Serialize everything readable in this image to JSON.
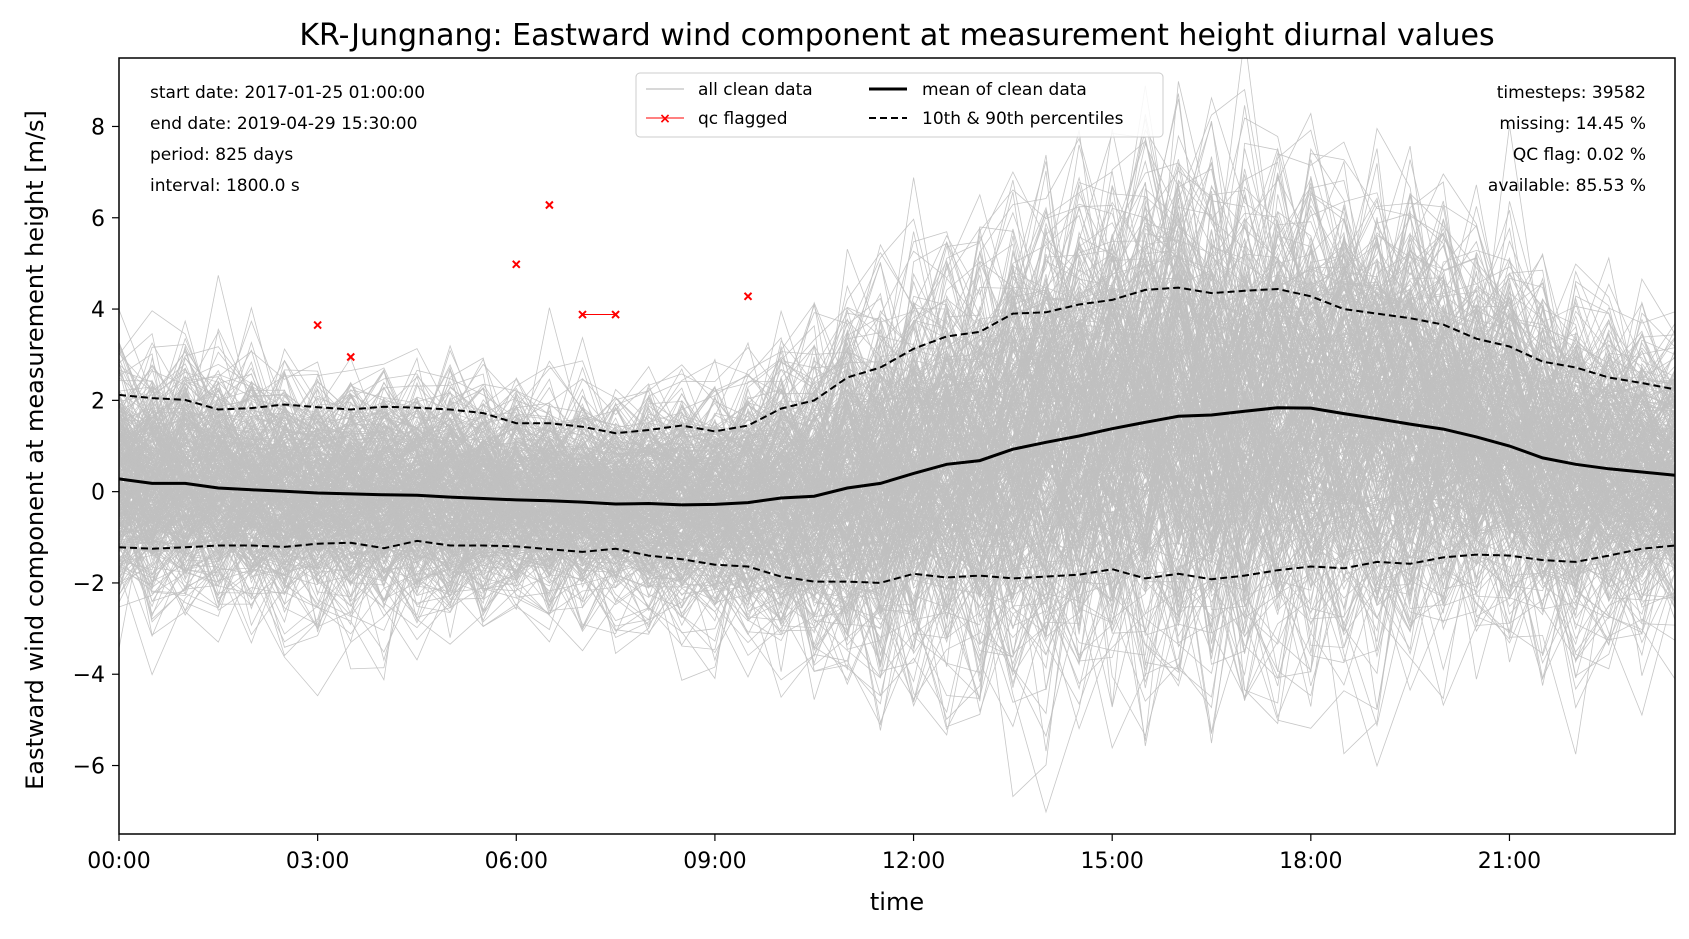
{
  "chart_data": {
    "type": "line",
    "title": "KR-Jungnang: Eastward wind component at measurement height diurnal values",
    "xlabel": "time",
    "ylabel": "Eastward wind component at measurement height [m/s]",
    "xlim": [
      0,
      23.5
    ],
    "ylim": [
      -7.5,
      9.5
    ],
    "x_ticks": [
      0,
      3,
      6,
      9,
      12,
      15,
      18,
      21
    ],
    "x_tick_labels": [
      "00:00",
      "03:00",
      "06:00",
      "09:00",
      "12:00",
      "15:00",
      "18:00",
      "21:00"
    ],
    "y_ticks": [
      -6,
      -4,
      -2,
      0,
      2,
      4,
      6,
      8
    ],
    "y_tick_labels": [
      "−6",
      "−4",
      "−2",
      "0",
      "2",
      "4",
      "6",
      "8"
    ],
    "grid": false,
    "info_left": [
      "start date: 2017-01-25 01:00:00",
      "end date: 2019-04-29 15:30:00",
      "period: 825 days",
      "interval: 1800.0 s"
    ],
    "info_right": [
      "timesteps: 39582",
      "missing: 14.45 %",
      "QC flag: 0.02 %",
      "available: 85.53 %"
    ],
    "legend": {
      "position": "top-center",
      "entries": [
        "all clean data",
        "qc flagged",
        "mean of clean data",
        "10th & 90th percentiles"
      ]
    },
    "colors": {
      "clean": "#c0c0c0",
      "qc": "#ff0000",
      "mean": "#000000",
      "percentile": "#000000"
    },
    "x": [
      0,
      0.5,
      1,
      1.5,
      2,
      2.5,
      3,
      3.5,
      4,
      4.5,
      5,
      5.5,
      6,
      6.5,
      7,
      7.5,
      8,
      8.5,
      9,
      9.5,
      10,
      10.5,
      11,
      11.5,
      12,
      12.5,
      13,
      13.5,
      14,
      14.5,
      15,
      15.5,
      16,
      16.5,
      17,
      17.5,
      18,
      18.5,
      19,
      19.5,
      20,
      20.5,
      21,
      21.5,
      22,
      22.5,
      23,
      23.5
    ],
    "series": [
      {
        "name": "mean of clean data",
        "values": [
          0.28,
          0.18,
          0.18,
          0.08,
          0.04,
          0.01,
          -0.03,
          -0.05,
          -0.07,
          -0.08,
          -0.12,
          -0.15,
          -0.18,
          -0.2,
          -0.23,
          -0.27,
          -0.26,
          -0.29,
          -0.28,
          -0.24,
          -0.14,
          -0.1,
          0.08,
          0.18,
          0.4,
          0.6,
          0.68,
          0.93,
          1.08,
          1.22,
          1.38,
          1.52,
          1.65,
          1.68,
          1.76,
          1.84,
          1.83,
          1.71,
          1.6,
          1.48,
          1.37,
          1.2,
          1.0,
          0.74,
          0.6,
          0.5,
          0.43,
          0.36
        ]
      },
      {
        "name": "10th & 90th percentiles",
        "values": [
          2.12,
          2.05,
          2.01,
          1.8,
          1.83,
          1.91,
          1.85,
          1.8,
          1.86,
          1.84,
          1.8,
          1.72,
          1.5,
          1.5,
          1.42,
          1.28,
          1.35,
          1.45,
          1.32,
          1.45,
          1.82,
          2.0,
          2.5,
          2.72,
          3.13,
          3.4,
          3.5,
          3.9,
          3.93,
          4.1,
          4.2,
          4.42,
          4.47,
          4.35,
          4.4,
          4.44,
          4.28,
          4.0,
          3.9,
          3.8,
          3.66,
          3.35,
          3.18,
          2.85,
          2.72,
          2.5,
          2.38,
          2.24
        ]
      },
      {
        "name": "10th & 90th percentiles",
        "values": [
          -1.22,
          -1.25,
          -1.22,
          -1.18,
          -1.18,
          -1.21,
          -1.14,
          -1.12,
          -1.24,
          -1.08,
          -1.18,
          -1.18,
          -1.2,
          -1.26,
          -1.32,
          -1.25,
          -1.4,
          -1.48,
          -1.6,
          -1.64,
          -1.86,
          -1.97,
          -1.97,
          -2.0,
          -1.8,
          -1.88,
          -1.84,
          -1.9,
          -1.86,
          -1.82,
          -1.7,
          -1.9,
          -1.8,
          -1.92,
          -1.84,
          -1.72,
          -1.64,
          -1.68,
          -1.54,
          -1.58,
          -1.44,
          -1.38,
          -1.4,
          -1.5,
          -1.54,
          -1.4,
          -1.25,
          -1.18
        ]
      },
      {
        "name": "qc flagged",
        "points": [
          [
            3.0,
            3.65
          ],
          [
            3.5,
            2.95
          ],
          [
            6.0,
            4.98
          ],
          [
            6.5,
            6.28
          ],
          [
            7.0,
            3.88
          ],
          [
            7.5,
            3.88
          ],
          [
            9.5,
            4.28
          ]
        ]
      }
    ]
  }
}
